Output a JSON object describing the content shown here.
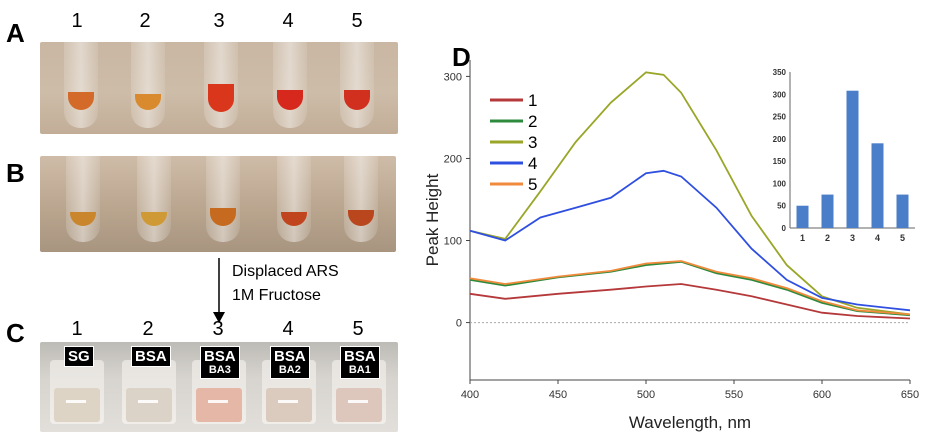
{
  "panels": {
    "A": {
      "letter": "A",
      "numbers": [
        "1",
        "2",
        "3",
        "4",
        "5"
      ]
    },
    "B": {
      "letter": "B"
    },
    "C": {
      "letter": "C",
      "numbers": [
        "1",
        "2",
        "3",
        "4",
        "5"
      ],
      "labels": [
        {
          "main": "SG",
          "sub": ""
        },
        {
          "main": "BSA",
          "sub": ""
        },
        {
          "main": "BSA",
          "sub": "BA3"
        },
        {
          "main": "BSA",
          "sub": "BA2"
        },
        {
          "main": "BSA",
          "sub": "BA1"
        }
      ]
    },
    "D": {
      "letter": "D"
    }
  },
  "arrow_text": {
    "line1": "Displaced ARS",
    "line2": "1M Fructose"
  },
  "colors": {
    "tubes_A": [
      "#d36a2a",
      "#d98a2e",
      "#d9361c",
      "#d7281d",
      "#d2301f"
    ],
    "tubes_B": [
      "#c9862c",
      "#cf9a35",
      "#c56a1e",
      "#c0451e",
      "#b9461d"
    ],
    "vials_C": [
      "#ddd4c6",
      "#dcd3c8",
      "#e4b7a6",
      "#dbcabe",
      "#ddc7bc"
    ]
  },
  "chart_data": [
    {
      "type": "line",
      "xlabel": "Wavelength, nm",
      "ylabel": "Peak Height",
      "xlim": [
        400,
        650
      ],
      "ylim": [
        -70,
        320
      ],
      "x_ticks": [
        400,
        450,
        500,
        550,
        600,
        650
      ],
      "y_ticks": [
        0,
        100,
        200,
        300
      ],
      "legend_position": "top-left",
      "series": [
        {
          "name": "1",
          "color": "#b5383a",
          "x": [
            400,
            420,
            450,
            480,
            500,
            520,
            540,
            560,
            580,
            600,
            620,
            650
          ],
          "y": [
            35,
            29,
            35,
            40,
            44,
            47,
            40,
            32,
            22,
            12,
            8,
            5
          ]
        },
        {
          "name": "2",
          "color": "#2e8a3c",
          "x": [
            400,
            420,
            450,
            480,
            500,
            520,
            540,
            560,
            580,
            600,
            620,
            650
          ],
          "y": [
            52,
            45,
            55,
            62,
            70,
            74,
            60,
            52,
            40,
            24,
            14,
            9
          ]
        },
        {
          "name": "3",
          "color": "#9aa628",
          "x": [
            400,
            420,
            440,
            460,
            480,
            500,
            510,
            520,
            540,
            560,
            580,
            600,
            620,
            650
          ],
          "y": [
            112,
            102,
            160,
            220,
            268,
            305,
            302,
            280,
            210,
            130,
            70,
            32,
            18,
            10
          ]
        },
        {
          "name": "4",
          "color": "#2f4fe0",
          "x": [
            400,
            420,
            440,
            460,
            480,
            500,
            510,
            520,
            540,
            560,
            580,
            600,
            620,
            650
          ],
          "y": [
            112,
            100,
            128,
            140,
            152,
            182,
            185,
            178,
            140,
            90,
            52,
            30,
            22,
            15
          ]
        },
        {
          "name": "5",
          "color": "#f08a3c",
          "x": [
            400,
            420,
            450,
            480,
            500,
            520,
            540,
            560,
            580,
            600,
            620,
            650
          ],
          "y": [
            54,
            47,
            56,
            63,
            72,
            75,
            62,
            54,
            42,
            26,
            15,
            10
          ]
        }
      ]
    },
    {
      "type": "bar",
      "categories": [
        "1",
        "2",
        "3",
        "4",
        "5"
      ],
      "values": [
        50,
        75,
        308,
        190,
        75
      ],
      "ylim": [
        0,
        350
      ],
      "y_ticks": [
        0,
        50,
        100,
        150,
        200,
        250,
        300,
        350
      ],
      "color": "#4a7ec8"
    }
  ]
}
